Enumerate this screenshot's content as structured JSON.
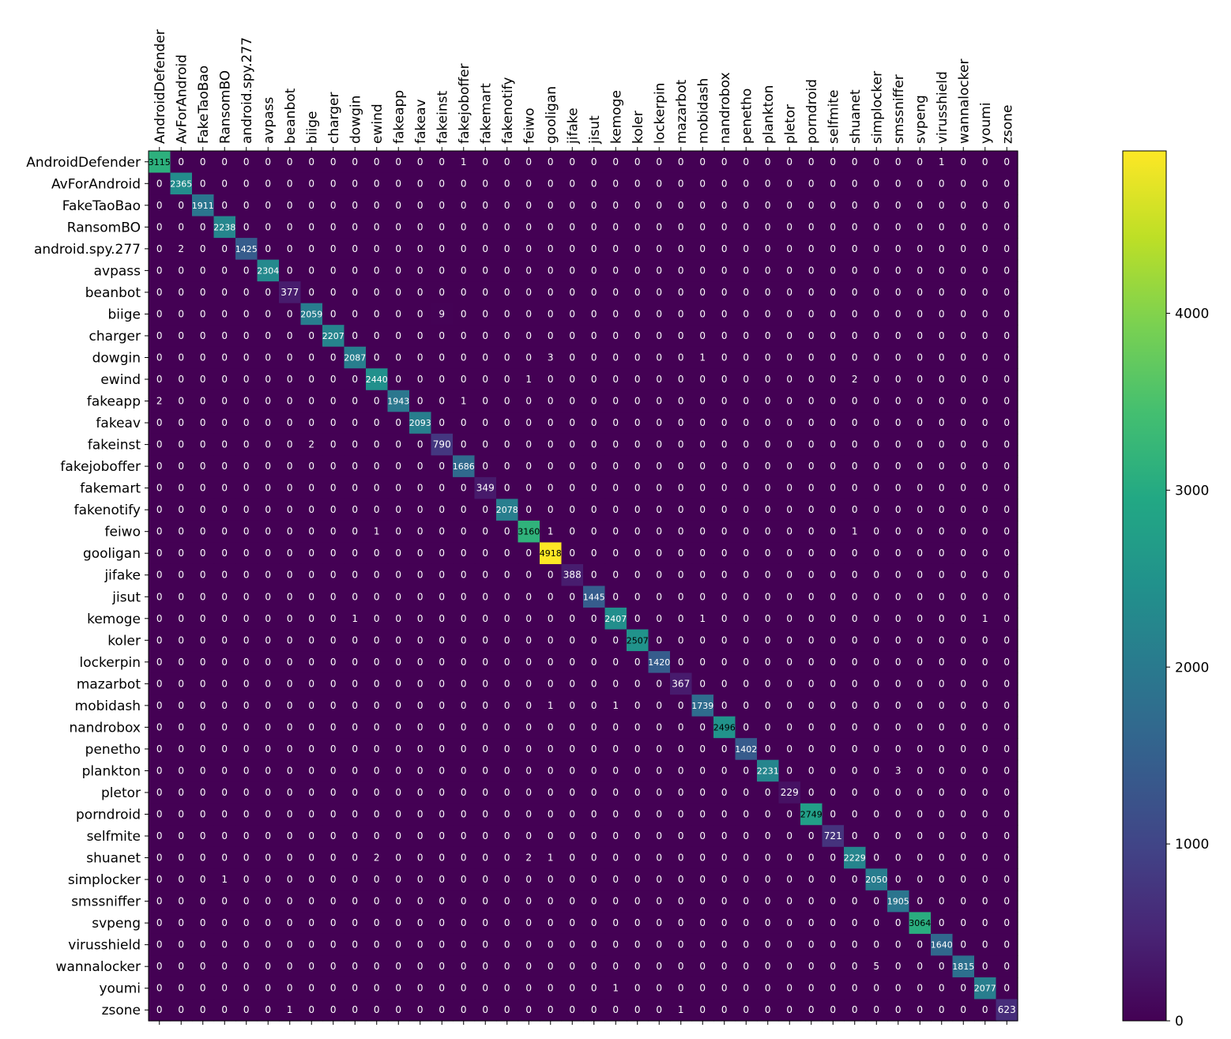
{
  "chart_data": {
    "type": "heatmap",
    "title": "",
    "xlabel": "",
    "ylabel": "",
    "labels": [
      "AndroidDefender",
      "AvForAndroid",
      "FakeTaoBao",
      "RansomBO",
      "android.spy.277",
      "avpass",
      "beanbot",
      "biige",
      "charger",
      "dowgin",
      "ewind",
      "fakeapp",
      "fakeav",
      "fakeinst",
      "fakejoboffer",
      "fakemart",
      "fakenotify",
      "feiwo",
      "gooligan",
      "jifake",
      "jisut",
      "kemoge",
      "koler",
      "lockerpin",
      "mazarbot",
      "mobidash",
      "nandrobox",
      "penetho",
      "plankton",
      "pletor",
      "porndroid",
      "selfmite",
      "shuanet",
      "simplocker",
      "smssniffer",
      "svpeng",
      "virusshield",
      "wannalocker",
      "youmi",
      "zsone"
    ],
    "x_tick_position": "top",
    "diagonal": [
      3115,
      2365,
      1911,
      2238,
      1425,
      2304,
      377,
      2059,
      2207,
      2087,
      2440,
      1943,
      2093,
      790,
      1686,
      349,
      2078,
      3160,
      4918,
      388,
      1445,
      2407,
      2507,
      1420,
      367,
      1739,
      2496,
      1402,
      2231,
      229,
      2749,
      721,
      2229,
      2050,
      1905,
      3064,
      1640,
      1815,
      2077,
      623
    ],
    "off_diagonal": [
      {
        "row": 0,
        "col": 14,
        "value": 1
      },
      {
        "row": 0,
        "col": 36,
        "value": 1
      },
      {
        "row": 4,
        "col": 1,
        "value": 2
      },
      {
        "row": 7,
        "col": 13,
        "value": 9
      },
      {
        "row": 9,
        "col": 18,
        "value": 3
      },
      {
        "row": 9,
        "col": 25,
        "value": 1
      },
      {
        "row": 10,
        "col": 17,
        "value": 1
      },
      {
        "row": 10,
        "col": 32,
        "value": 2
      },
      {
        "row": 11,
        "col": 0,
        "value": 2
      },
      {
        "row": 11,
        "col": 14,
        "value": 1
      },
      {
        "row": 13,
        "col": 7,
        "value": 2
      },
      {
        "row": 17,
        "col": 10,
        "value": 1
      },
      {
        "row": 17,
        "col": 18,
        "value": 1
      },
      {
        "row": 17,
        "col": 32,
        "value": 1
      },
      {
        "row": 21,
        "col": 9,
        "value": 1
      },
      {
        "row": 21,
        "col": 25,
        "value": 1
      },
      {
        "row": 21,
        "col": 38,
        "value": 1
      },
      {
        "row": 25,
        "col": 18,
        "value": 1
      },
      {
        "row": 25,
        "col": 21,
        "value": 1
      },
      {
        "row": 28,
        "col": 34,
        "value": 3
      },
      {
        "row": 32,
        "col": 10,
        "value": 2
      },
      {
        "row": 32,
        "col": 17,
        "value": 2
      },
      {
        "row": 32,
        "col": 18,
        "value": 1
      },
      {
        "row": 33,
        "col": 3,
        "value": 1
      },
      {
        "row": 37,
        "col": 33,
        "value": 5
      },
      {
        "row": 38,
        "col": 21,
        "value": 1
      },
      {
        "row": 39,
        "col": 6,
        "value": 1
      },
      {
        "row": 39,
        "col": 24,
        "value": 1
      }
    ],
    "colorbar": {
      "colormap": "viridis",
      "range": [
        0,
        4918
      ],
      "ticks": [
        0,
        1000,
        2000,
        3000,
        4000
      ]
    },
    "text_colors": {
      "light": "#ffffff",
      "dark": "#000000"
    },
    "grid": false
  }
}
